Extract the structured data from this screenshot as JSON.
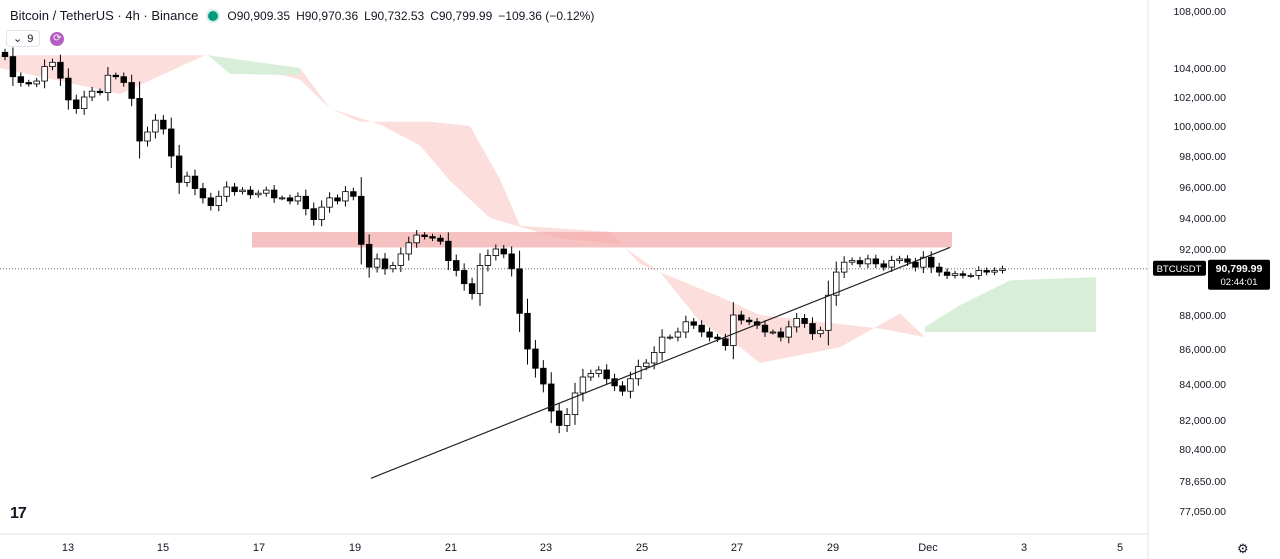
{
  "header": {
    "symbol": "Bitcoin / TetherUS · 4h · Binance",
    "open": "O90,909.35",
    "high": "H90,970.36",
    "low": "L90,732.53",
    "close": "C90,799.99",
    "change": "−109.36 (−0.12%)"
  },
  "indicator": {
    "count": "9"
  },
  "price_tag": {
    "symbol": "BTCUSDT",
    "price": "90,799.99",
    "countdown": "02:44:01"
  },
  "colors": {
    "up": "#ffffff",
    "down": "#000000",
    "zone": "#f2a6a6",
    "cloud_red": "#fbd9d7",
    "cloud_green": "#d9eed9",
    "trendline": "#1e1e1e"
  },
  "chart_data": {
    "type": "candlestick",
    "symbol": "BTCUSDT",
    "timeframe": "4h",
    "y_axis_ticks": [
      108000,
      104000,
      102000,
      100000,
      98000,
      96000,
      94000,
      92000,
      88000,
      86000,
      84000,
      82000,
      80400,
      78650,
      77050
    ],
    "y_tick_labels": [
      "108,000.00",
      "104,000.00",
      "102,000.00",
      "100,000.00",
      "98,000.00",
      "96,000.00",
      "94,000.00",
      "92,000.00",
      "88,000.00",
      "86,000.00",
      "84,000.00",
      "82,000.00",
      "80,400.00",
      "78,650.00",
      "77,050.00"
    ],
    "x_tick_labels": [
      "13",
      "15",
      "17",
      "19",
      "21",
      "23",
      "25",
      "27",
      "29",
      "Dec",
      "3",
      "5"
    ],
    "resistance_zone": {
      "from": 92100,
      "to": 93100,
      "start_label": "17",
      "end_label": "Dec"
    },
    "trendline": {
      "start": {
        "date_label": "19",
        "price": 78800
      },
      "end": {
        "date_label": "Dec",
        "price": 92100
      }
    },
    "close_series": [
      104800,
      103400,
      103000,
      102900,
      103100,
      104100,
      104400,
      103300,
      101800,
      101200,
      102000,
      102400,
      102300,
      103500,
      103400,
      103000,
      101900,
      99000,
      99600,
      100400,
      99800,
      98000,
      96300,
      96700,
      95900,
      95300,
      94800,
      95400,
      96000,
      95700,
      95800,
      95500,
      95600,
      95800,
      95300,
      95300,
      95100,
      95400,
      94600,
      93900,
      94700,
      95300,
      95100,
      95700,
      95400,
      92300,
      90900,
      91400,
      90800,
      91000,
      91700,
      92400,
      92900,
      92800,
      92700,
      92500,
      91300,
      90700,
      89900,
      89300,
      91000,
      91600,
      92000,
      91700,
      90800,
      88100,
      86000,
      84900,
      84000,
      82500,
      81700,
      82300,
      83500,
      84400,
      84600,
      84800,
      84300,
      83900,
      83600,
      84300,
      85000,
      85200,
      85800,
      86700,
      86700,
      87000,
      87600,
      87400,
      87000,
      86700,
      86600,
      86200,
      88000,
      87700,
      87600,
      87400,
      87000,
      87000,
      86700,
      87300,
      87800,
      87500,
      86900,
      87100,
      89200,
      90600,
      91200,
      91300,
      91100,
      91400,
      91100,
      90900,
      91300,
      91400,
      91200,
      90900,
      91500,
      90900,
      90600,
      90400,
      90500,
      90400,
      90400,
      90700,
      90600,
      90700,
      90800
    ]
  }
}
